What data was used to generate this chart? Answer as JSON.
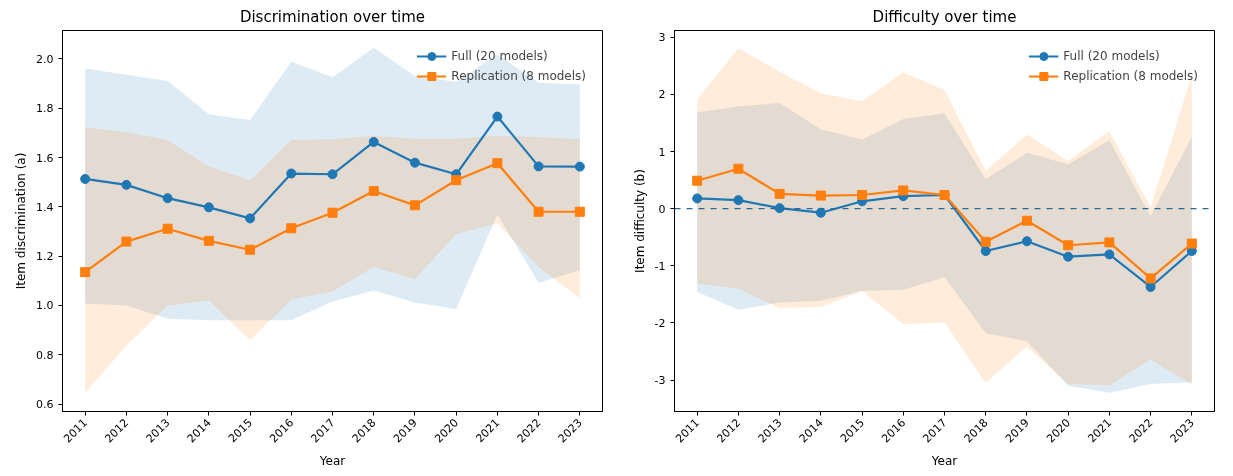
{
  "chart_data": [
    {
      "type": "line",
      "title": "Discrimination over time",
      "xlabel": "Year",
      "ylabel": "Item discrimination (a)",
      "categories": [
        "2011",
        "2012",
        "2013",
        "2014",
        "2015",
        "2016",
        "2017",
        "2018",
        "2019",
        "2020",
        "2021",
        "2022",
        "2023"
      ],
      "ylim": [
        0.57,
        2.115
      ],
      "yticks": [
        0.6,
        0.8,
        {
          "value": 1,
          "label": "1.0"
        },
        1.2,
        1.4,
        1.6,
        1.8,
        {
          "value": 2,
          "label": "2.0"
        }
      ],
      "grid": false,
      "legend": "top right",
      "line_style": "solid",
      "series": [
        {
          "name": "Full (20 models)",
          "color": "#1f77b4",
          "marker": "circle",
          "values": [
            1.513,
            1.489,
            1.435,
            1.398,
            1.353,
            1.535,
            1.532,
            1.663,
            1.579,
            1.532,
            1.766,
            1.564,
            1.563
          ],
          "lower": [
            1.008,
            1.0,
            0.946,
            0.94,
            0.94,
            0.94,
            1.016,
            1.061,
            1.012,
            0.986,
            1.369,
            1.092,
            1.143
          ],
          "upper": [
            1.961,
            1.936,
            1.91,
            1.775,
            1.752,
            1.988,
            1.925,
            2.045,
            1.929,
            1.907,
            2.018,
            1.903,
            1.896
          ]
        },
        {
          "name": "Replication (8 models)",
          "color": "#ff7f0e",
          "marker": "square",
          "values": [
            1.135,
            1.259,
            1.311,
            1.262,
            1.226,
            1.313,
            1.376,
            1.464,
            1.406,
            1.508,
            1.577,
            1.38,
            1.38
          ],
          "lower": [
            0.647,
            0.837,
            1.0,
            1.02,
            0.859,
            1.024,
            1.057,
            1.156,
            1.107,
            1.29,
            1.333,
            1.156,
            1.029
          ],
          "upper": [
            1.723,
            1.702,
            1.671,
            1.564,
            1.508,
            1.671,
            1.674,
            1.688,
            1.676,
            1.676,
            1.688,
            1.683,
            1.674
          ]
        }
      ]
    },
    {
      "type": "line",
      "title": "Difficulty over time",
      "xlabel": "Year",
      "ylabel": "Item difficulty (b)",
      "categories": [
        "2011",
        "2012",
        "2013",
        "2014",
        "2015",
        "2016",
        "2017",
        "2018",
        "2019",
        "2020",
        "2021",
        "2022",
        "2023"
      ],
      "ylim": [
        -3.55,
        3.12
      ],
      "yticks": [
        -3,
        -2,
        -1,
        0,
        1,
        2,
        3
      ],
      "grid": false,
      "legend": "top right",
      "line_style": "solid",
      "ref_lines": [
        {
          "axis": "y",
          "value": 0,
          "label": null,
          "color": "#2c6a94",
          "line_style": "dashed"
        }
      ],
      "series": [
        {
          "name": "Full (20 models)",
          "color": "#1f77b4",
          "marker": "circle",
          "values": [
            0.18,
            0.15,
            0.01,
            -0.07,
            0.13,
            0.22,
            0.24,
            -0.74,
            -0.57,
            -0.84,
            -0.8,
            -1.37,
            -0.74
          ],
          "lower": [
            -1.46,
            -1.77,
            -1.64,
            -1.61,
            -1.44,
            -1.42,
            -1.2,
            -2.18,
            -2.32,
            -3.1,
            -3.22,
            -3.07,
            -3.04
          ],
          "upper": [
            1.69,
            1.79,
            1.85,
            1.39,
            1.21,
            1.57,
            1.67,
            0.52,
            0.98,
            0.78,
            1.2,
            -0.13,
            1.26
          ]
        },
        {
          "name": "Replication (8 models)",
          "color": "#ff7f0e",
          "marker": "square",
          "values": [
            0.49,
            0.7,
            0.26,
            0.23,
            0.24,
            0.32,
            0.24,
            -0.58,
            -0.21,
            -0.64,
            -0.59,
            -1.22,
            -0.61
          ],
          "lower": [
            -1.31,
            -1.4,
            -1.74,
            -1.72,
            -1.44,
            -2.02,
            -1.99,
            -3.05,
            -2.41,
            -3.07,
            -3.09,
            -2.64,
            -3.08
          ],
          "upper": [
            1.91,
            2.81,
            2.4,
            2.02,
            1.88,
            2.39,
            2.08,
            0.66,
            1.3,
            0.84,
            1.36,
            0.02,
            2.34
          ]
        }
      ]
    }
  ]
}
